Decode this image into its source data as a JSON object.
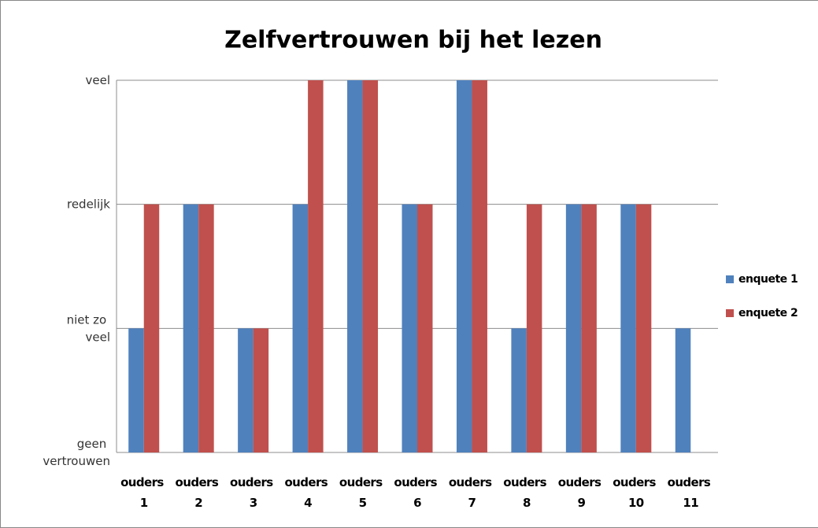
{
  "chart_data": {
    "type": "bar",
    "title": "Zelfvertrouwen bij het lezen",
    "categories": [
      "ouders 1",
      "ouders 2",
      "ouders 3",
      "ouders 4",
      "ouders 5",
      "ouders 6",
      "ouders 7",
      "ouders 8",
      "ouders 9",
      "ouders 10",
      "ouders 11"
    ],
    "series": [
      {
        "name": "enquete 1",
        "color": "#4f81bd",
        "values": [
          1,
          2,
          1,
          2,
          3,
          2,
          3,
          1,
          2,
          2,
          1
        ]
      },
      {
        "name": "enquete 2",
        "color": "#c0504d",
        "values": [
          2,
          2,
          1,
          3,
          3,
          2,
          3,
          2,
          2,
          2,
          null
        ]
      }
    ],
    "ylim": [
      0,
      3
    ],
    "yticks": [
      {
        "value": 0,
        "label": "geen vertrouwen"
      },
      {
        "value": 1,
        "label": "niet zo veel"
      },
      {
        "value": 2,
        "label": "redelijk"
      },
      {
        "value": 3,
        "label": "veel"
      }
    ],
    "grid": true,
    "legend": "right"
  }
}
